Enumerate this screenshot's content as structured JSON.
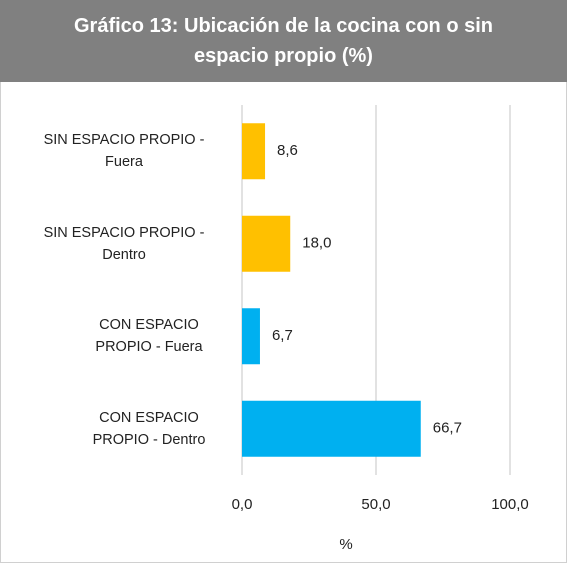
{
  "chart_data": {
    "type": "barh",
    "title": "Gráfico 13: Ubicación de la cocina con o sin espacio propio (%)",
    "categories": [
      "SIN ESPACIO PROPIO - Fuera",
      "SIN ESPACIO PROPIO - Dentro",
      "CON ESPACIO PROPIO - Fuera",
      "CON ESPACIO PROPIO - Dentro"
    ],
    "values": [
      8.6,
      18.0,
      6.7,
      66.7
    ],
    "value_labels": [
      "8,6",
      "18,0",
      "6,7",
      "66,7"
    ],
    "colors": [
      "#ffc000",
      "#ffc000",
      "#00b0f0",
      "#00b0f0"
    ],
    "xlim": [
      0,
      100
    ],
    "xticks": [
      {
        "value": 0,
        "label": "0,0"
      },
      {
        "value": 50,
        "label": "50,0"
      },
      {
        "value": 100,
        "label": "100,0"
      }
    ],
    "xlabel": "%",
    "grid": true
  }
}
